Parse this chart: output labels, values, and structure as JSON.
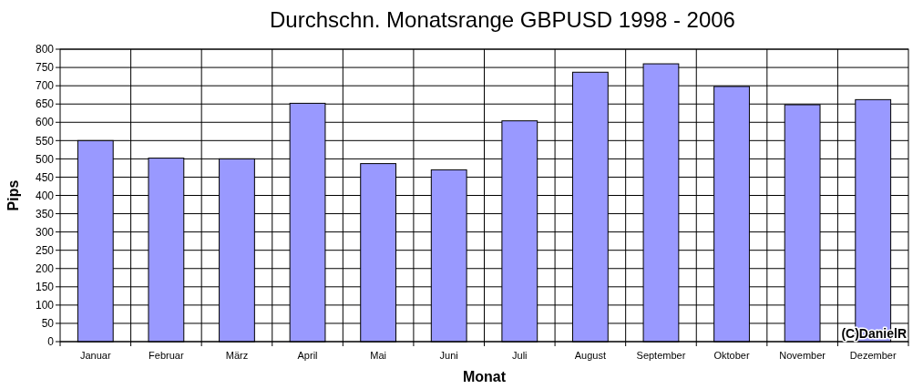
{
  "chart_data": {
    "type": "bar",
    "title": "Durchschn. Monatsrange GBPUSD 1998 - 2006",
    "xlabel": "Monat",
    "ylabel": "Pips",
    "categories": [
      "Januar",
      "Februar",
      "März",
      "April",
      "Mai",
      "Juni",
      "Juli",
      "August",
      "September",
      "Oktober",
      "November",
      "Dezember"
    ],
    "values": [
      550,
      502,
      500,
      652,
      487,
      470,
      604,
      737,
      760,
      698,
      648,
      662
    ],
    "color": "#9999ff",
    "ylim": [
      0,
      800
    ],
    "yticks": [
      0,
      50,
      100,
      150,
      200,
      250,
      300,
      350,
      400,
      450,
      500,
      550,
      600,
      650,
      700,
      750,
      800
    ],
    "grid": true,
    "annotations": [
      "(C)DanielR"
    ]
  }
}
